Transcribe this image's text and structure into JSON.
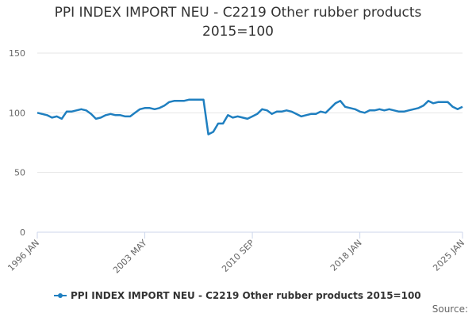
{
  "chart_data": {
    "type": "line",
    "title": "PPI INDEX IMPORT NEU - C2219 Other rubber products 2015=100",
    "source": "Source:",
    "categories": [
      "1996 JAN",
      null,
      null,
      null,
      null,
      null,
      null,
      null,
      null,
      null,
      null,
      null,
      null,
      null,
      null,
      null,
      null,
      null,
      null,
      null,
      null,
      null,
      "2003 MAY",
      null,
      null,
      null,
      null,
      null,
      null,
      null,
      null,
      null,
      null,
      null,
      null,
      null,
      null,
      null,
      null,
      null,
      null,
      null,
      null,
      null,
      "2010 SEP",
      null,
      null,
      null,
      null,
      null,
      null,
      null,
      null,
      null,
      null,
      null,
      null,
      null,
      null,
      null,
      null,
      null,
      null,
      null,
      null,
      null,
      "2018 JAN",
      null,
      null,
      null,
      null,
      null,
      null,
      null,
      null,
      null,
      null,
      null,
      null,
      null,
      null,
      null,
      null,
      null,
      null,
      null,
      null,
      "2025 JAN"
    ],
    "series": [
      {
        "name": "PPI INDEX IMPORT NEU - C2219 Other rubber products 2015=100",
        "color": "#1f7fc0",
        "values": [
          100,
          99,
          98,
          96,
          97,
          95,
          101,
          101,
          102,
          103,
          102,
          99,
          95,
          96,
          98,
          99,
          98,
          98,
          97,
          97,
          100,
          103,
          104,
          104,
          103,
          104,
          106,
          109,
          110,
          110,
          110,
          111,
          111,
          111,
          111,
          82,
          84,
          91,
          91,
          98,
          96,
          97,
          96,
          95,
          97,
          99,
          103,
          102,
          99,
          101,
          101,
          102,
          101,
          99,
          97,
          98,
          99,
          99,
          101,
          100,
          104,
          108,
          110,
          105,
          104,
          103,
          101,
          100,
          102,
          102,
          103,
          102,
          103,
          102,
          101,
          101,
          102,
          103,
          104,
          106,
          110,
          108,
          109,
          109,
          109,
          105,
          103,
          105
        ]
      }
    ],
    "ylim": [
      0,
      150
    ],
    "yticks": [
      0,
      50,
      100,
      150
    ],
    "grid": true
  }
}
